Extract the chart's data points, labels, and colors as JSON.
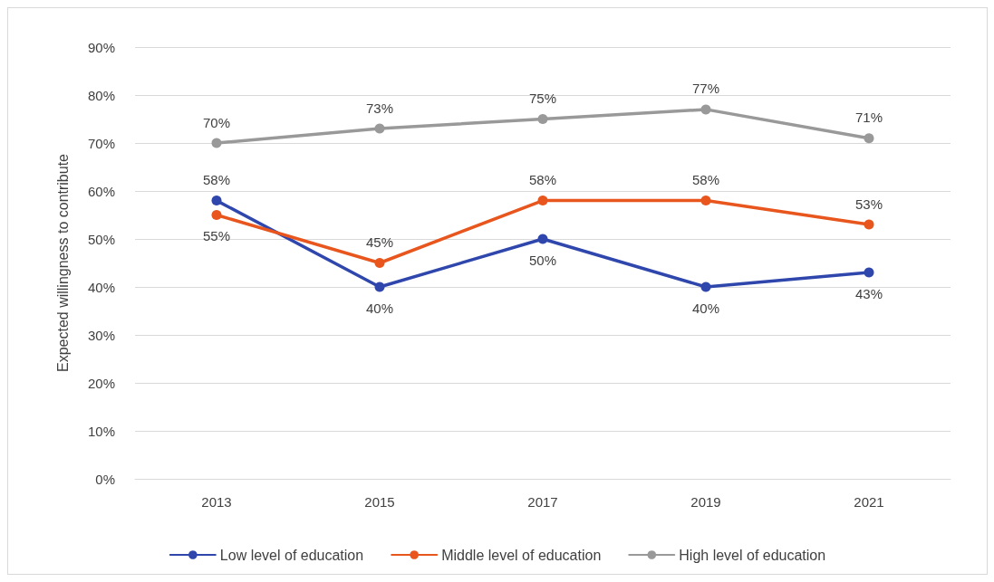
{
  "chart_data": {
    "type": "line",
    "ylabel": "Expected willingness to contribute",
    "categories": [
      "2013",
      "2015",
      "2017",
      "2019",
      "2021"
    ],
    "series": [
      {
        "name": "Low level of education",
        "color": "#2f47ad",
        "values": [
          58,
          40,
          50,
          40,
          43
        ],
        "value_labels": [
          "58%",
          "40%",
          "50%",
          "40%",
          "43%"
        ]
      },
      {
        "name": "Middle level of education",
        "color": "#e8561e",
        "values": [
          55,
          45,
          58,
          58,
          53
        ],
        "value_labels": [
          "55%",
          "45%",
          "58%",
          "58%",
          "53%"
        ]
      },
      {
        "name": "High level of education",
        "color": "#999999",
        "values": [
          70,
          73,
          75,
          77,
          71
        ],
        "value_labels": [
          "70%",
          "73%",
          "75%",
          "77%",
          "71%"
        ]
      }
    ],
    "ylim": [
      0,
      90
    ],
    "yticks": [
      {
        "value": 0,
        "label": "0%"
      },
      {
        "value": 10,
        "label": "10%"
      },
      {
        "value": 20,
        "label": "20%"
      },
      {
        "value": 30,
        "label": "30%"
      },
      {
        "value": 40,
        "label": "40%"
      },
      {
        "value": 50,
        "label": "50%"
      },
      {
        "value": 60,
        "label": "60%"
      },
      {
        "value": 70,
        "label": "70%"
      },
      {
        "value": 80,
        "label": "80%"
      },
      {
        "value": 90,
        "label": "90%"
      }
    ],
    "grid": "y",
    "legend": "bottom",
    "marker": "circle",
    "line_style": "solid"
  }
}
